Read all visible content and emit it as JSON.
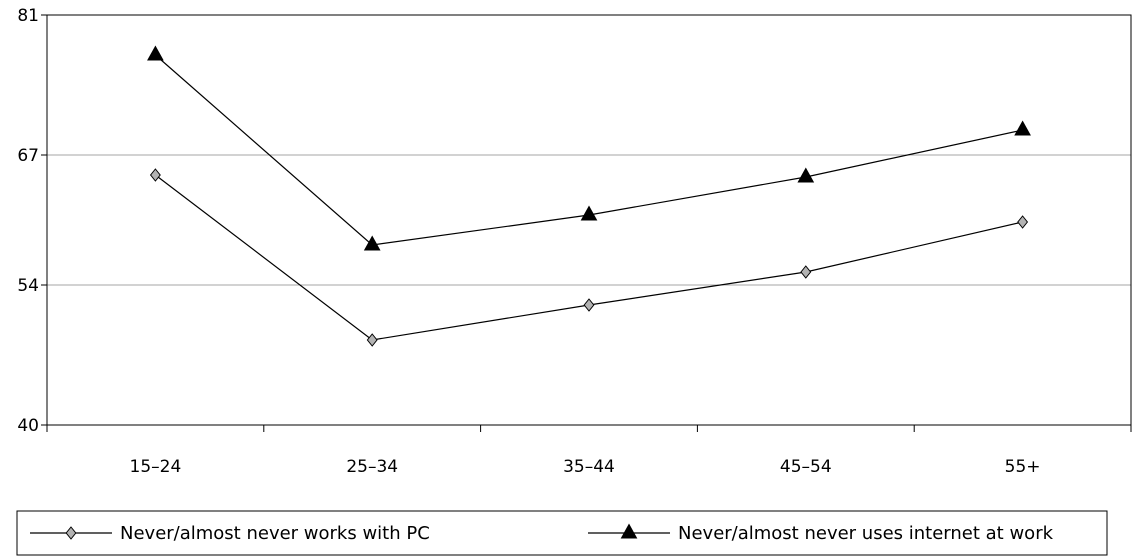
{
  "chart_data": {
    "type": "line",
    "title": "",
    "xlabel": "",
    "ylabel": "",
    "categories": [
      "15–24",
      "25–34",
      "35–44",
      "45–54",
      "55+"
    ],
    "ylim": [
      40,
      81
    ],
    "yticks": [
      40,
      54,
      67,
      81
    ],
    "grid": true,
    "legend_position": "bottom",
    "series": [
      {
        "name": "Never/almost never works with PC",
        "values": [
          65,
          48.5,
          52,
          55.3,
          60.3
        ],
        "marker": "diamond",
        "marker_color": "#b3b3b3",
        "line_color": "#000000"
      },
      {
        "name": "Never/almost never uses internet at work",
        "values": [
          77,
          58,
          61,
          64.8,
          69.5
        ],
        "marker": "triangle",
        "marker_color": "#000000",
        "line_color": "#000000"
      }
    ]
  }
}
